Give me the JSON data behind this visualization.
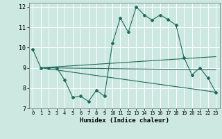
{
  "xlabel": "Humidex (Indice chaleur)",
  "bg_color": "#cce8e0",
  "line_color": "#1e6b5e",
  "grid_color": "#ffffff",
  "xlim": [
    -0.5,
    23.5
  ],
  "ylim": [
    7,
    12.2
  ],
  "xticks": [
    0,
    1,
    2,
    3,
    4,
    5,
    6,
    7,
    8,
    9,
    10,
    11,
    12,
    13,
    14,
    15,
    16,
    17,
    18,
    19,
    20,
    21,
    22,
    23
  ],
  "yticks": [
    7,
    8,
    9,
    10,
    11,
    12
  ],
  "line1_x": [
    0,
    1,
    2,
    3,
    4,
    5,
    6,
    7,
    8,
    9,
    10,
    11,
    12,
    13,
    14,
    15,
    16,
    17,
    18,
    19,
    20,
    21,
    22,
    23
  ],
  "line1_y": [
    9.9,
    9.0,
    9.0,
    9.0,
    8.4,
    7.55,
    7.6,
    7.35,
    7.9,
    7.6,
    10.2,
    11.45,
    10.75,
    12.0,
    11.6,
    11.35,
    11.6,
    11.38,
    11.1,
    9.5,
    8.65,
    9.0,
    8.5,
    7.8
  ],
  "line2_x": [
    1,
    23
  ],
  "line2_y": [
    9.0,
    9.55
  ],
  "line3_x": [
    1,
    23
  ],
  "line3_y": [
    9.0,
    8.9
  ],
  "line4_x": [
    1,
    23
  ],
  "line4_y": [
    9.0,
    7.8
  ]
}
